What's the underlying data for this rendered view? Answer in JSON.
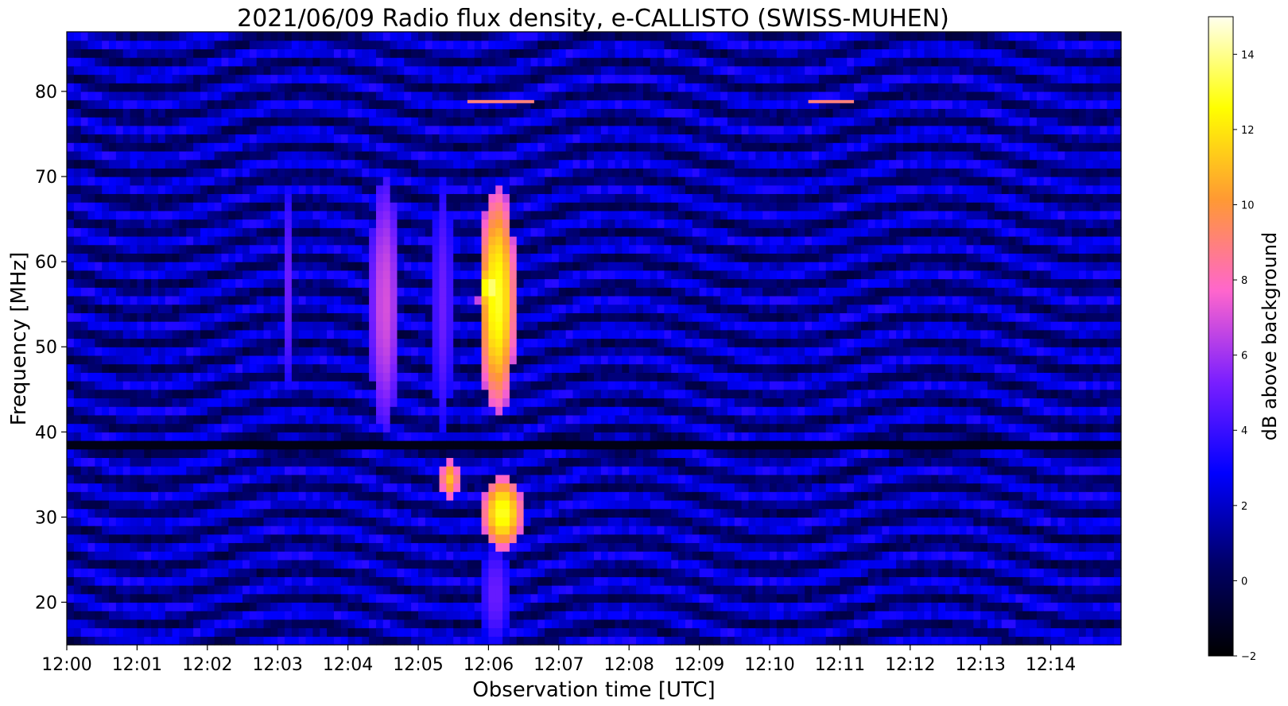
{
  "chart_data": {
    "type": "heatmap",
    "title": "2021/06/09  Radio flux density, e-CALLISTO (SWISS-MUHEN)",
    "xlabel": "Observation time [UTC]",
    "ylabel": "Frequency [MHz]",
    "x_unit": "minutes after 12:00 UTC",
    "xlim": [
      0,
      15
    ],
    "ylim": [
      15,
      87
    ],
    "x_ticks": [
      {
        "value": 0,
        "label": "12:00"
      },
      {
        "value": 1,
        "label": "12:01"
      },
      {
        "value": 2,
        "label": "12:02"
      },
      {
        "value": 3,
        "label": "12:03"
      },
      {
        "value": 4,
        "label": "12:04"
      },
      {
        "value": 5,
        "label": "12:05"
      },
      {
        "value": 6,
        "label": "12:06"
      },
      {
        "value": 7,
        "label": "12:07"
      },
      {
        "value": 8,
        "label": "12:08"
      },
      {
        "value": 9,
        "label": "12:09"
      },
      {
        "value": 10,
        "label": "12:10"
      },
      {
        "value": 11,
        "label": "12:11"
      },
      {
        "value": 12,
        "label": "12:12"
      },
      {
        "value": 13,
        "label": "12:13"
      },
      {
        "value": 14,
        "label": "12:14"
      }
    ],
    "y_ticks": [
      20,
      30,
      40,
      50,
      60,
      70,
      80
    ],
    "colorbar": {
      "label": "dB above background",
      "vmin": -2,
      "vmax": 15,
      "ticks": [
        -2,
        0,
        2,
        4,
        6,
        8,
        10,
        12,
        14
      ],
      "colormap": [
        "#000000",
        "#000066",
        "#0000ff",
        "#7a1fff",
        "#ff66cc",
        "#ff9933",
        "#ffff00",
        "#ffffee"
      ]
    },
    "background_db": 1.5,
    "features": [
      {
        "kind": "type III burst",
        "t_start": 3.05,
        "t_end": 3.25,
        "f_low": 45,
        "f_high": 69,
        "db": 5
      },
      {
        "kind": "type III burst",
        "t_start": 4.3,
        "t_end": 4.75,
        "f_low": 40,
        "f_high": 70,
        "db": 7
      },
      {
        "kind": "type III burst",
        "t_start": 5.2,
        "t_end": 5.5,
        "f_low": 40,
        "f_high": 70,
        "db": 5
      },
      {
        "kind": "type III burst",
        "t_start": 5.85,
        "t_end": 6.4,
        "f_low": 42,
        "f_high": 69,
        "db": 13
      },
      {
        "kind": "burst core",
        "t_start": 5.85,
        "t_end": 6.2,
        "f_low": 54,
        "f_high": 60,
        "db": 14
      },
      {
        "kind": "type III burst",
        "t_start": 5.3,
        "t_end": 5.6,
        "f_low": 32,
        "f_high": 37,
        "db": 11
      },
      {
        "kind": "type III burst",
        "t_start": 5.9,
        "t_end": 6.5,
        "f_low": 26,
        "f_high": 35,
        "db": 13
      },
      {
        "kind": "burst tail",
        "t_start": 5.9,
        "t_end": 6.3,
        "f_low": 15,
        "f_high": 27,
        "db": 5
      }
    ],
    "interference_lines": [
      {
        "t_start": 5.7,
        "t_end": 6.65,
        "f": 78.8,
        "db": 9
      },
      {
        "t_start": 10.55,
        "t_end": 11.2,
        "f": 78.8,
        "db": 9
      }
    ],
    "grid": false,
    "legend": "none"
  }
}
